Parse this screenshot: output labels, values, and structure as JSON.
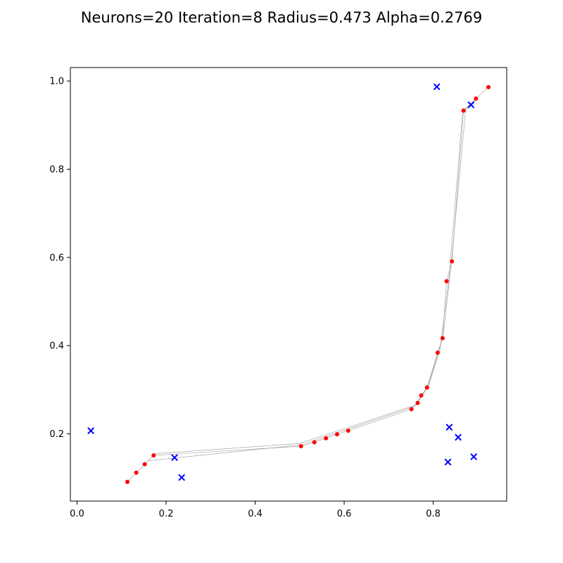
{
  "chart_data": {
    "type": "scatter",
    "title": "Neurons=20 Iteration=8 Radius=0.473 Alpha=0.2769",
    "xlabel": "",
    "ylabel": "",
    "xlim": [
      -0.015,
      0.965
    ],
    "ylim": [
      0.0475,
      1.0305
    ],
    "x_ticks": [
      0.0,
      0.2,
      0.4,
      0.6,
      0.8
    ],
    "x_tick_labels": [
      "0.0",
      "0.2",
      "0.4",
      "0.6",
      "0.8"
    ],
    "y_ticks": [
      0.2,
      0.4,
      0.6,
      0.8,
      1.0
    ],
    "y_tick_labels": [
      "0.2",
      "0.4",
      "0.6",
      "0.8",
      "1.0"
    ],
    "grid": false,
    "legend": "none",
    "series": [
      {
        "marker": "x",
        "color": "#0000ff",
        "points": [
          [
            0.031,
            0.207
          ],
          [
            0.219,
            0.146
          ],
          [
            0.235,
            0.101
          ],
          [
            0.808,
            0.987
          ],
          [
            0.885,
            0.946
          ],
          [
            0.836,
            0.215
          ],
          [
            0.856,
            0.192
          ],
          [
            0.833,
            0.136
          ],
          [
            0.891,
            0.148
          ]
        ]
      },
      {
        "marker": "dot",
        "color": "#ff0000",
        "points": [
          [
            0.113,
            0.091
          ],
          [
            0.133,
            0.112
          ],
          [
            0.152,
            0.131
          ],
          [
            0.172,
            0.151
          ],
          [
            0.503,
            0.172
          ],
          [
            0.533,
            0.181
          ],
          [
            0.559,
            0.19
          ],
          [
            0.584,
            0.199
          ],
          [
            0.609,
            0.207
          ],
          [
            0.751,
            0.256
          ],
          [
            0.765,
            0.27
          ],
          [
            0.773,
            0.287
          ],
          [
            0.786,
            0.305
          ],
          [
            0.81,
            0.384
          ],
          [
            0.821,
            0.417
          ],
          [
            0.83,
            0.546
          ],
          [
            0.842,
            0.591
          ],
          [
            0.868,
            0.933
          ],
          [
            0.896,
            0.96
          ],
          [
            0.924,
            0.986
          ]
        ]
      }
    ],
    "trails": {
      "color": "#999999",
      "paths": [
        [
          [
            0.113,
            0.091
          ],
          [
            0.133,
            0.112
          ],
          [
            0.152,
            0.131
          ],
          [
            0.172,
            0.151
          ],
          [
            0.503,
            0.172
          ],
          [
            0.533,
            0.181
          ],
          [
            0.559,
            0.19
          ],
          [
            0.584,
            0.199
          ],
          [
            0.609,
            0.207
          ],
          [
            0.751,
            0.256
          ],
          [
            0.765,
            0.27
          ],
          [
            0.773,
            0.287
          ],
          [
            0.786,
            0.305
          ],
          [
            0.81,
            0.384
          ],
          [
            0.821,
            0.417
          ],
          [
            0.83,
            0.546
          ],
          [
            0.842,
            0.591
          ],
          [
            0.868,
            0.933
          ],
          [
            0.896,
            0.96
          ],
          [
            0.924,
            0.986
          ]
        ],
        [
          [
            0.152,
            0.131
          ],
          [
            0.176,
            0.155
          ],
          [
            0.5,
            0.178
          ],
          [
            0.762,
            0.266
          ],
          [
            0.79,
            0.31
          ],
          [
            0.815,
            0.39
          ],
          [
            0.835,
            0.55
          ],
          [
            0.866,
            0.93
          ],
          [
            0.895,
            0.955
          ]
        ],
        [
          [
            0.16,
            0.139
          ],
          [
            0.505,
            0.175
          ],
          [
            0.757,
            0.262
          ],
          [
            0.788,
            0.307
          ],
          [
            0.822,
            0.42
          ],
          [
            0.84,
            0.58
          ],
          [
            0.873,
            0.937
          ],
          [
            0.9,
            0.962
          ]
        ]
      ]
    }
  }
}
